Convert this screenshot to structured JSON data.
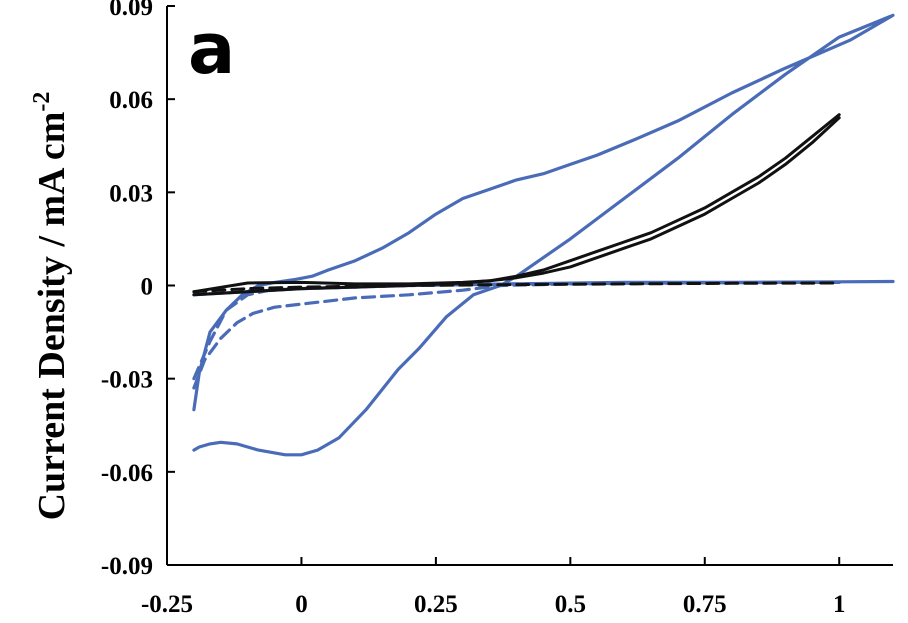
{
  "chart_data": {
    "type": "line",
    "panel_label": "a",
    "title": "",
    "xlabel": "",
    "ylabel": "Current Density / mA cm",
    "ylabel_superscript": "-2",
    "xlim": [
      -0.25,
      1.1
    ],
    "ylim": [
      -0.09,
      0.09
    ],
    "xticks": [
      -0.25,
      0,
      0.25,
      0.5,
      0.75,
      1
    ],
    "xtick_labels": [
      "-0.25",
      "0",
      "0.25",
      "0.5",
      "0.75",
      "1"
    ],
    "yticks": [
      -0.09,
      -0.06,
      -0.03,
      0,
      0.03,
      0.06,
      0.09
    ],
    "ytick_labels": [
      "-0.09",
      "-0.06",
      "-0.03",
      "0",
      "0.03",
      "0.06",
      "0.09"
    ],
    "grid": false,
    "legend": "none",
    "series": [
      {
        "color": "#4a6cb8",
        "style": "solid",
        "x": [
          -0.2,
          -0.19,
          -0.17,
          -0.15,
          -0.12,
          -0.08,
          -0.03,
          0.0,
          0.03,
          0.07,
          0.12,
          0.18,
          0.22,
          0.27,
          0.32,
          0.37,
          0.4,
          0.5,
          0.6,
          0.7,
          0.8,
          0.9,
          1.0,
          1.1,
          1.02,
          0.9,
          0.8,
          0.7,
          0.62,
          0.55,
          0.5,
          0.45,
          0.4,
          0.35,
          0.3,
          0.25,
          0.2,
          0.15,
          0.1,
          0.05,
          0.02,
          -0.01,
          -0.05,
          -0.08,
          -0.11,
          -0.14,
          -0.17,
          -0.19,
          -0.2
        ],
        "y": [
          -0.053,
          -0.052,
          -0.051,
          -0.0505,
          -0.051,
          -0.053,
          -0.0545,
          -0.0545,
          -0.053,
          -0.049,
          -0.04,
          -0.027,
          -0.02,
          -0.01,
          -0.003,
          0.0,
          0.003,
          0.015,
          0.028,
          0.041,
          0.055,
          0.068,
          0.08,
          0.087,
          0.079,
          0.07,
          0.062,
          0.053,
          0.047,
          0.042,
          0.039,
          0.036,
          0.034,
          0.031,
          0.028,
          0.023,
          0.017,
          0.012,
          0.008,
          0.005,
          0.003,
          0.002,
          0.001,
          0.0,
          -0.003,
          -0.008,
          -0.015,
          -0.028,
          -0.04
        ]
      },
      {
        "color": "#4a6cb8",
        "style": "solid",
        "x": [
          -0.2,
          -0.1,
          0.0,
          0.2,
          0.4,
          0.6,
          0.8,
          1.0,
          1.1
        ],
        "y": [
          -0.003,
          -0.002,
          -0.001,
          0.0,
          0.0005,
          0.001,
          0.001,
          0.0012,
          0.0013
        ]
      },
      {
        "color": "#4a6cb8",
        "style": "dashed",
        "x": [
          -0.2,
          -0.18,
          -0.15,
          -0.12,
          -0.09,
          -0.05,
          0.0,
          0.1,
          0.2,
          0.3,
          0.37,
          0.5,
          0.7,
          0.9,
          1.0
        ],
        "y": [
          -0.033,
          -0.024,
          -0.017,
          -0.012,
          -0.009,
          -0.007,
          -0.006,
          -0.004,
          -0.003,
          -0.0015,
          0.0,
          0.0005,
          0.0008,
          0.001,
          0.001
        ]
      },
      {
        "color": "#4a6cb8",
        "style": "dashed",
        "x": [
          -0.2,
          -0.17,
          -0.14,
          -0.1,
          -0.06,
          0.0,
          0.1,
          0.2,
          0.3,
          0.4,
          0.5,
          0.7,
          0.9,
          1.0
        ],
        "y": [
          -0.03,
          -0.018,
          -0.008,
          -0.003,
          -0.0015,
          -0.001,
          -0.0005,
          0.0,
          0.0003,
          0.0005,
          0.0006,
          0.0008,
          0.001,
          0.001
        ]
      },
      {
        "color": "#111111",
        "style": "solid",
        "x": [
          -0.2,
          -0.1,
          0.0,
          0.1,
          0.2,
          0.3,
          0.35,
          0.4,
          0.45,
          0.5,
          0.55,
          0.6,
          0.65,
          0.7,
          0.75,
          0.8,
          0.85,
          0.9,
          0.95,
          1.0
        ],
        "y": [
          -0.003,
          -0.002,
          -0.001,
          -0.0005,
          0.0,
          0.0008,
          0.0015,
          0.003,
          0.005,
          0.008,
          0.011,
          0.014,
          0.017,
          0.021,
          0.025,
          0.03,
          0.035,
          0.041,
          0.048,
          0.055
        ]
      },
      {
        "color": "#111111",
        "style": "solid",
        "x": [
          1.0,
          0.95,
          0.9,
          0.85,
          0.8,
          0.75,
          0.7,
          0.65,
          0.6,
          0.55,
          0.5,
          0.45,
          0.4,
          0.35,
          0.3,
          0.2,
          0.1,
          0.0,
          -0.1,
          -0.2
        ],
        "y": [
          0.054,
          0.046,
          0.039,
          0.033,
          0.028,
          0.023,
          0.019,
          0.015,
          0.012,
          0.009,
          0.006,
          0.004,
          0.0025,
          0.0015,
          0.001,
          0.0005,
          0.0005,
          0.001,
          0.0008,
          -0.002
        ]
      },
      {
        "color": "#111111",
        "style": "dashed",
        "x": [
          -0.2,
          -0.1,
          0.0,
          0.2,
          0.4,
          0.6,
          0.8,
          1.0
        ],
        "y": [
          -0.002,
          -0.001,
          -0.0005,
          0.0,
          0.0003,
          0.0005,
          0.0007,
          0.0008
        ]
      }
    ]
  }
}
